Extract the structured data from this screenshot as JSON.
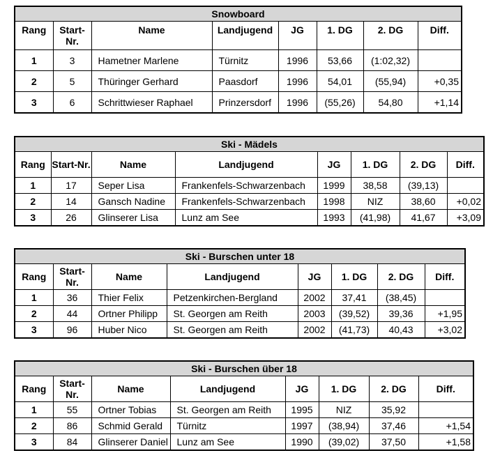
{
  "document": {
    "background_color": "#ffffff",
    "title_bar_color": "#d6d6d6",
    "border_color": "#000000",
    "text_color": "#000000"
  },
  "tables": [
    {
      "title": "Snowboard",
      "headers": [
        "Rang",
        "Start-Nr.",
        "Name",
        "Landjugend",
        "JG",
        "1. DG",
        "2. DG",
        "Diff."
      ],
      "rows": [
        [
          "1",
          "3",
          "Hametner Marlene",
          "Türnitz",
          "1996",
          "53,66",
          "(1:02,32)",
          ""
        ],
        [
          "2",
          "5",
          "Thüringer Gerhard",
          "Paasdorf",
          "1996",
          "54,01",
          "(55,94)",
          "+0,35"
        ],
        [
          "3",
          "6",
          "Schrittwieser Raphael",
          "Prinzersdorf",
          "1996",
          "(55,26)",
          "54,80",
          "+1,14"
        ]
      ]
    },
    {
      "title": "Ski - Mädels",
      "headers": [
        "Rang",
        "Start-Nr.",
        "Name",
        "Landjugend",
        "JG",
        "1. DG",
        "2. DG",
        "Diff."
      ],
      "rows": [
        [
          "1",
          "17",
          "Seper Lisa",
          "Frankenfels-Schwarzenbach",
          "1999",
          "38,58",
          "(39,13)",
          ""
        ],
        [
          "2",
          "14",
          "Gansch Nadine",
          "Frankenfels-Schwarzenbach",
          "1998",
          "NIZ",
          "38,60",
          "+0,02"
        ],
        [
          "3",
          "26",
          "Glinserer Lisa",
          "Lunz am See",
          "1993",
          "(41,98)",
          "41,67",
          "+3,09"
        ]
      ]
    },
    {
      "title": "Ski - Burschen unter 18",
      "headers": [
        "Rang",
        "Start-Nr.",
        "Name",
        "Landjugend",
        "JG",
        "1. DG",
        "2. DG",
        "Diff."
      ],
      "rows": [
        [
          "1",
          "36",
          "Thier Felix",
          "Petzenkirchen-Bergland",
          "2002",
          "37,41",
          "(38,45)",
          ""
        ],
        [
          "2",
          "44",
          "Ortner Philipp",
          "St. Georgen am Reith",
          "2003",
          "(39,52)",
          "39,36",
          "+1,95"
        ],
        [
          "3",
          "96",
          "Huber Nico",
          "St. Georgen am Reith",
          "2002",
          "(41,73)",
          "40,43",
          "+3,02"
        ]
      ]
    },
    {
      "title": "Ski - Burschen über 18",
      "headers": [
        "Rang",
        "Start-Nr.",
        "Name",
        "Landjugend",
        "JG",
        "1. DG",
        "2. DG",
        "Diff."
      ],
      "rows": [
        [
          "1",
          "55",
          "Ortner Tobias",
          "St. Georgen am Reith",
          "1995",
          "NIZ",
          "35,92",
          ""
        ],
        [
          "2",
          "86",
          "Schmid Gerald",
          "Türnitz",
          "1997",
          "(38,94)",
          "37,46",
          "+1,54"
        ],
        [
          "3",
          "84",
          "Glinserer Daniel",
          "Lunz am See",
          "1990",
          "(39,02)",
          "37,50",
          "+1,58"
        ]
      ]
    }
  ]
}
